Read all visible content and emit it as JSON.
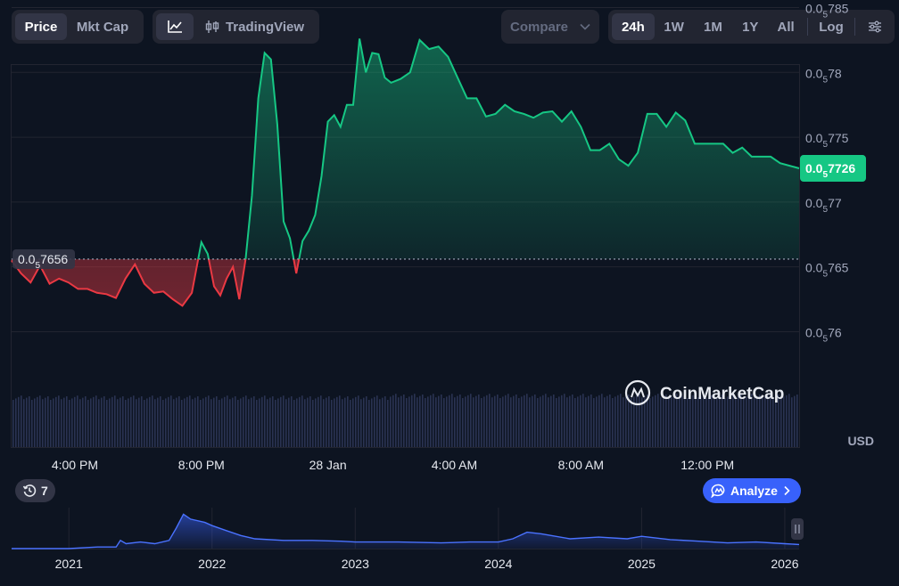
{
  "toolbar": {
    "price_label": "Price",
    "mktcap_label": "Mkt Cap",
    "tradingview_label": "TradingView",
    "compare_label": "Compare",
    "ranges": [
      "24h",
      "1W",
      "1M",
      "1Y",
      "All"
    ],
    "active_range": "24h",
    "log_label": "Log"
  },
  "chart_data": [
    {
      "type": "area",
      "currency_label": "USD",
      "y_tick_labels": [
        {
          "prefix": "0.0",
          "sub": "5",
          "rest": "785",
          "value": 7.85e-06
        },
        {
          "prefix": "0.0",
          "sub": "5",
          "rest": "78",
          "value": 7.8e-06
        },
        {
          "prefix": "0.0",
          "sub": "5",
          "rest": "775",
          "value": 7.75e-06
        },
        {
          "prefix": "0.0",
          "sub": "5",
          "rest": "77",
          "value": 7.7e-06
        },
        {
          "prefix": "0.0",
          "sub": "5",
          "rest": "765",
          "value": 7.65e-06
        },
        {
          "prefix": "0.0",
          "sub": "5",
          "rest": "76",
          "value": 7.6e-06
        }
      ],
      "x_tick_labels": [
        "4:00 PM",
        "8:00 PM",
        "28 Jan",
        "4:00 AM",
        "8:00 AM",
        "12:00 PM"
      ],
      "x_tick_hours": [
        2,
        6,
        10,
        14,
        18,
        22
      ],
      "x_range_hours": [
        0,
        24.9
      ],
      "ylim_scaled": [
        7.555,
        7.805
      ],
      "scale_note": "values below are in units of 1e-6 USD",
      "baseline": {
        "value": 7.656,
        "prefix": "0.0",
        "sub": "5",
        "rest": "7656"
      },
      "current": {
        "value": 7.726,
        "prefix": "0.0",
        "sub": "5",
        "rest": "7726"
      },
      "x_hours": [
        0,
        0.3,
        0.6,
        0.9,
        1.2,
        1.5,
        1.8,
        2.1,
        2.4,
        2.7,
        3.0,
        3.3,
        3.6,
        3.9,
        4.2,
        4.5,
        4.8,
        5.1,
        5.4,
        5.7,
        6.0,
        6.2,
        6.4,
        6.6,
        6.8,
        7.0,
        7.2,
        7.4,
        7.6,
        7.8,
        8.0,
        8.2,
        8.4,
        8.6,
        8.8,
        9.0,
        9.2,
        9.4,
        9.6,
        9.8,
        10.0,
        10.2,
        10.4,
        10.6,
        10.8,
        11.0,
        11.2,
        11.4,
        11.6,
        11.8,
        12.0,
        12.3,
        12.6,
        12.9,
        13.2,
        13.5,
        13.8,
        14.1,
        14.4,
        14.7,
        15.0,
        15.3,
        15.6,
        15.9,
        16.2,
        16.5,
        16.8,
        17.1,
        17.4,
        17.7,
        18.0,
        18.3,
        18.6,
        18.9,
        19.2,
        19.5,
        19.8,
        20.1,
        20.4,
        20.7,
        21.0,
        21.3,
        21.6,
        21.9,
        22.2,
        22.5,
        22.8,
        23.1,
        23.4,
        23.7,
        24.0,
        24.3,
        24.6,
        24.9
      ],
      "y_values": [
        7.655,
        7.645,
        7.638,
        7.651,
        7.637,
        7.641,
        7.638,
        7.633,
        7.633,
        7.63,
        7.629,
        7.626,
        7.641,
        7.652,
        7.637,
        7.63,
        7.631,
        7.625,
        7.62,
        7.63,
        7.669,
        7.66,
        7.635,
        7.628,
        7.641,
        7.65,
        7.625,
        7.656,
        7.705,
        7.78,
        7.815,
        7.81,
        7.76,
        7.685,
        7.672,
        7.645,
        7.67,
        7.678,
        7.69,
        7.72,
        7.762,
        7.767,
        7.758,
        7.775,
        7.775,
        7.826,
        7.8,
        7.815,
        7.814,
        7.796,
        7.792,
        7.795,
        7.8,
        7.825,
        7.818,
        7.82,
        7.812,
        7.796,
        7.78,
        7.78,
        7.766,
        7.768,
        7.775,
        7.77,
        7.768,
        7.765,
        7.769,
        7.77,
        7.762,
        7.77,
        7.758,
        7.74,
        7.74,
        7.745,
        7.733,
        7.728,
        7.738,
        7.768,
        7.768,
        7.758,
        7.769,
        7.763,
        7.745,
        7.745,
        7.745,
        7.745,
        7.738,
        7.742,
        7.735,
        7.735,
        7.735,
        7.73,
        7.728,
        7.726
      ]
    },
    {
      "type": "area",
      "x_tick_labels": [
        "2021",
        "2022",
        "2023",
        "2024",
        "2025",
        "2026"
      ],
      "x_tick_years": [
        2021,
        2022,
        2023,
        2024,
        2025,
        2026
      ],
      "x_range_years": [
        2020.6,
        2026.1
      ],
      "x_years": [
        2020.6,
        2021.0,
        2021.2,
        2021.33,
        2021.36,
        2021.4,
        2021.5,
        2021.6,
        2021.7,
        2021.75,
        2021.8,
        2021.85,
        2021.95,
        2022.0,
        2022.1,
        2022.2,
        2022.3,
        2022.5,
        2022.7,
        2022.9,
        2023.0,
        2023.3,
        2023.6,
        2023.8,
        2024.0,
        2024.1,
        2024.2,
        2024.3,
        2024.5,
        2024.7,
        2024.9,
        2025.0,
        2025.2,
        2025.4,
        2025.6,
        2025.8,
        2026.0,
        2026.1
      ],
      "y_values": [
        0,
        0,
        0.02,
        0.02,
        0.1,
        0.06,
        0.08,
        0.06,
        0.1,
        0.25,
        0.42,
        0.36,
        0.32,
        0.28,
        0.22,
        0.16,
        0.12,
        0.1,
        0.1,
        0.09,
        0.08,
        0.08,
        0.07,
        0.08,
        0.08,
        0.12,
        0.2,
        0.18,
        0.12,
        0.14,
        0.12,
        0.15,
        0.11,
        0.09,
        0.07,
        0.08,
        0.06,
        0.05
      ]
    }
  ],
  "events_badge": {
    "icon": "history-icon",
    "count": "7"
  },
  "analyze_label": "Analyze",
  "watermark": "CoinMarketCap",
  "colors": {
    "up": "#16c784",
    "down": "#ea3943",
    "accent": "#3861fb",
    "background": "#0d1421"
  }
}
